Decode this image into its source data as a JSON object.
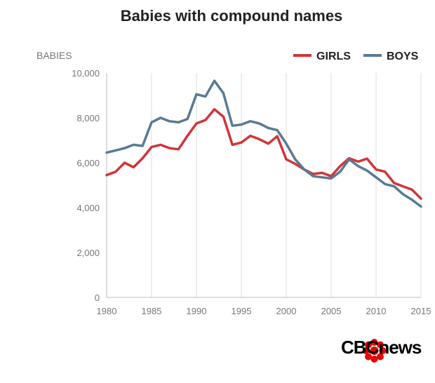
{
  "chart_data": {
    "type": "line",
    "title": "Babies with compound names",
    "ylabel": "BABIES",
    "xlabel": "",
    "xlim": [
      1980,
      2015
    ],
    "ylim": [
      0,
      10000
    ],
    "x_ticks": [
      "1980",
      "1985",
      "1990",
      "1995",
      "2000",
      "2005",
      "2010",
      "2015"
    ],
    "y_ticks": [
      "0",
      "2,000",
      "4,000",
      "6,000",
      "8,000",
      "10,000"
    ],
    "grid": "vertical",
    "legend_position": "top-right",
    "x": [
      1980,
      1981,
      1982,
      1983,
      1984,
      1985,
      1986,
      1987,
      1988,
      1989,
      1990,
      1991,
      1992,
      1993,
      1994,
      1995,
      1996,
      1997,
      1998,
      1999,
      2000,
      2001,
      2002,
      2003,
      2004,
      2005,
      2006,
      2007,
      2008,
      2009,
      2010,
      2011,
      2012,
      2013,
      2014,
      2015
    ],
    "series": [
      {
        "name": "GIRLS",
        "color": "#d2343a",
        "values": [
          5450,
          5600,
          6000,
          5800,
          6200,
          6700,
          6800,
          6650,
          6600,
          7200,
          7750,
          7900,
          8380,
          8050,
          6800,
          6900,
          7200,
          7050,
          6850,
          7180,
          6150,
          5950,
          5700,
          5500,
          5550,
          5400,
          5850,
          6200,
          6050,
          6180,
          5700,
          5600,
          5100,
          4950,
          4800,
          4400
        ]
      },
      {
        "name": "BOYS",
        "color": "#5a7a93",
        "values": [
          6450,
          6550,
          6650,
          6800,
          6750,
          7800,
          8000,
          7850,
          7800,
          7950,
          9050,
          8950,
          9650,
          9100,
          7650,
          7700,
          7850,
          7750,
          7550,
          7450,
          6850,
          6150,
          5700,
          5400,
          5350,
          5300,
          5600,
          6150,
          5850,
          5650,
          5350,
          5050,
          4950,
          4600,
          4350,
          4050
        ]
      }
    ]
  },
  "branding": {
    "logo_text": "CBCnews",
    "logo_color": "#e60505"
  }
}
